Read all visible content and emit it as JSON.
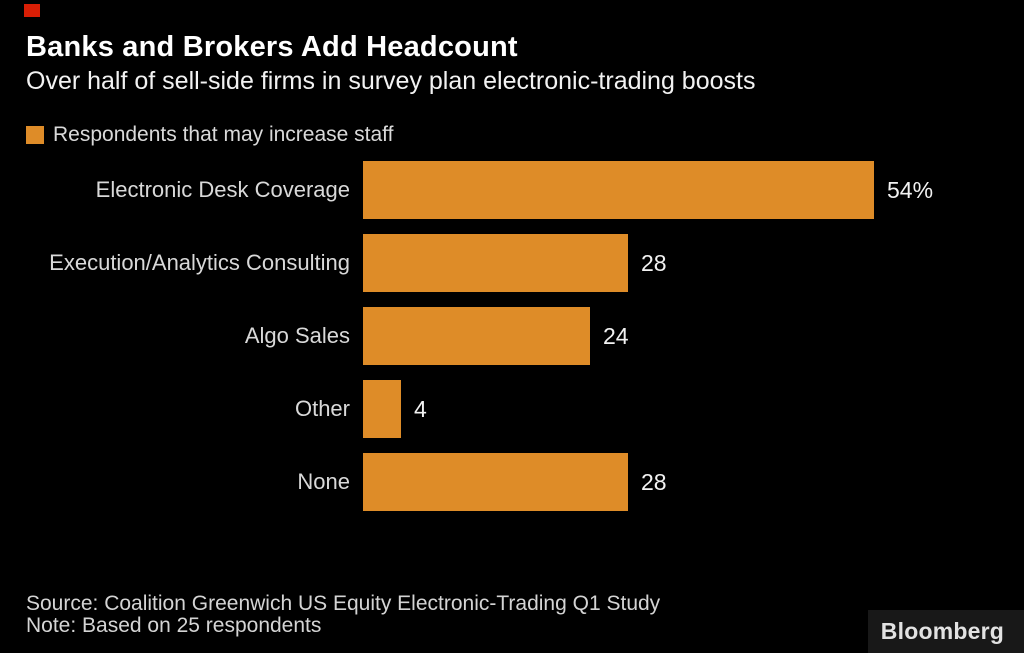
{
  "header": {
    "title": "Banks and Brokers Add Headcount",
    "subtitle": "Over half of sell-side firms in survey plan electronic-trading boosts"
  },
  "legend": {
    "label": "Respondents that may increase staff"
  },
  "chart_data": {
    "type": "bar",
    "orientation": "horizontal",
    "title": "Banks and Brokers Add Headcount",
    "subtitle": "Over half of sell-side firms in survey plan electronic-trading boosts",
    "series_name": "Respondents that may increase staff",
    "categories": [
      "Electronic Desk Coverage",
      "Execution/Analytics Consulting",
      "Algo Sales",
      "Other",
      "None"
    ],
    "values": [
      54,
      28,
      24,
      4,
      28
    ],
    "value_labels": [
      "54%",
      "28",
      "24",
      "4",
      "28"
    ],
    "unit": "percent",
    "xlim": [
      0,
      54
    ],
    "grid": false,
    "legend_position": "top-left",
    "bar_color": "#de8c28"
  },
  "footer": {
    "source": "Source: Coalition Greenwich US Equity Electronic-Trading Q1 Study",
    "note": "Note: Based on 25 respondents",
    "logo": "Bloomberg"
  },
  "colors": {
    "background": "#000000",
    "accent_orange": "#de8c28",
    "red_marker": "#d81e05",
    "text_primary": "#ffffff",
    "text_secondary": "#d9d9d9"
  }
}
